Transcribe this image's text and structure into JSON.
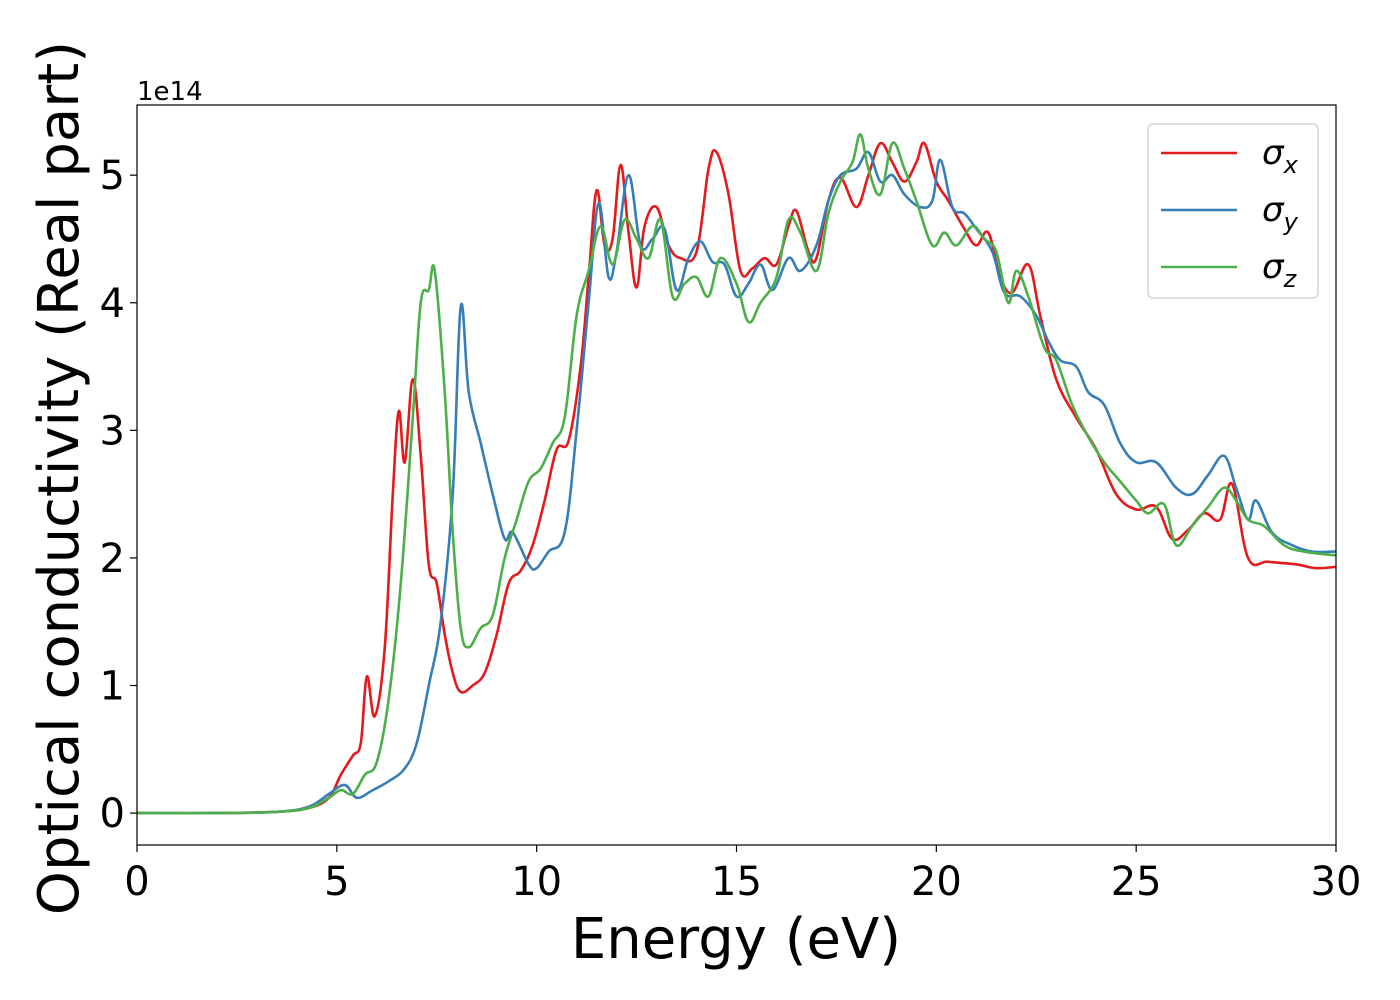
{
  "chart_data": {
    "type": "line",
    "xlabel": "Energy (eV)",
    "ylabel": "Optical conductivity (Real part)",
    "y_offset_label": "1e14",
    "xlim": [
      0,
      30
    ],
    "ylim": [
      -0.25,
      5.55
    ],
    "x_ticks": [
      0,
      5,
      10,
      15,
      20,
      25,
      30
    ],
    "y_ticks": [
      0,
      1,
      2,
      3,
      4,
      5
    ],
    "grid": false,
    "legend_position": "top-right",
    "series": [
      {
        "name": "σ",
        "subscript": "x",
        "color": "#e41a1c",
        "points": [
          [
            0,
            0
          ],
          [
            2,
            0
          ],
          [
            3.5,
            0.01
          ],
          [
            4.3,
            0.04
          ],
          [
            4.8,
            0.12
          ],
          [
            5.1,
            0.3
          ],
          [
            5.4,
            0.45
          ],
          [
            5.6,
            0.55
          ],
          [
            5.75,
            1.07
          ],
          [
            5.95,
            0.76
          ],
          [
            6.2,
            1.3
          ],
          [
            6.4,
            2.5
          ],
          [
            6.55,
            3.15
          ],
          [
            6.7,
            2.75
          ],
          [
            6.9,
            3.4
          ],
          [
            7.1,
            2.8
          ],
          [
            7.3,
            1.95
          ],
          [
            7.5,
            1.8
          ],
          [
            7.7,
            1.4
          ],
          [
            7.9,
            1.1
          ],
          [
            8.1,
            0.95
          ],
          [
            8.4,
            1.0
          ],
          [
            8.7,
            1.1
          ],
          [
            9.0,
            1.4
          ],
          [
            9.3,
            1.8
          ],
          [
            9.6,
            1.9
          ],
          [
            9.9,
            2.1
          ],
          [
            10.2,
            2.45
          ],
          [
            10.5,
            2.85
          ],
          [
            10.8,
            2.92
          ],
          [
            11.1,
            3.5
          ],
          [
            11.3,
            4.2
          ],
          [
            11.5,
            4.88
          ],
          [
            11.7,
            4.45
          ],
          [
            11.9,
            4.5
          ],
          [
            12.1,
            5.08
          ],
          [
            12.3,
            4.55
          ],
          [
            12.5,
            4.12
          ],
          [
            12.7,
            4.6
          ],
          [
            13.0,
            4.75
          ],
          [
            13.3,
            4.45
          ],
          [
            13.6,
            4.35
          ],
          [
            14.0,
            4.4
          ],
          [
            14.3,
            5.05
          ],
          [
            14.5,
            5.18
          ],
          [
            14.8,
            4.85
          ],
          [
            15.1,
            4.25
          ],
          [
            15.4,
            4.27
          ],
          [
            15.7,
            4.35
          ],
          [
            16.0,
            4.3
          ],
          [
            16.3,
            4.6
          ],
          [
            16.5,
            4.72
          ],
          [
            16.8,
            4.4
          ],
          [
            17.0,
            4.35
          ],
          [
            17.3,
            4.8
          ],
          [
            17.6,
            4.98
          ],
          [
            18.0,
            4.75
          ],
          [
            18.3,
            5.0
          ],
          [
            18.6,
            5.25
          ],
          [
            18.9,
            5.1
          ],
          [
            19.2,
            4.95
          ],
          [
            19.5,
            5.1
          ],
          [
            19.7,
            5.25
          ],
          [
            20.0,
            4.95
          ],
          [
            20.3,
            4.8
          ],
          [
            20.7,
            4.58
          ],
          [
            21.0,
            4.45
          ],
          [
            21.3,
            4.55
          ],
          [
            21.6,
            4.2
          ],
          [
            21.9,
            4.08
          ],
          [
            22.3,
            4.3
          ],
          [
            22.6,
            3.9
          ],
          [
            23.0,
            3.4
          ],
          [
            23.5,
            3.1
          ],
          [
            24.0,
            2.85
          ],
          [
            24.5,
            2.5
          ],
          [
            25.0,
            2.38
          ],
          [
            25.5,
            2.4
          ],
          [
            25.9,
            2.15
          ],
          [
            26.3,
            2.22
          ],
          [
            26.7,
            2.35
          ],
          [
            27.1,
            2.3
          ],
          [
            27.4,
            2.58
          ],
          [
            27.8,
            2.0
          ],
          [
            28.3,
            1.97
          ],
          [
            29.0,
            1.95
          ],
          [
            29.5,
            1.92
          ],
          [
            30,
            1.93
          ]
        ]
      },
      {
        "name": "σ",
        "subscript": "y",
        "color": "#377eb8",
        "points": [
          [
            0,
            0
          ],
          [
            2,
            0
          ],
          [
            3.5,
            0.01
          ],
          [
            4.3,
            0.05
          ],
          [
            4.8,
            0.15
          ],
          [
            5.2,
            0.22
          ],
          [
            5.5,
            0.12
          ],
          [
            5.9,
            0.18
          ],
          [
            6.3,
            0.25
          ],
          [
            6.7,
            0.35
          ],
          [
            7.0,
            0.55
          ],
          [
            7.3,
            1.0
          ],
          [
            7.6,
            1.5
          ],
          [
            7.9,
            2.5
          ],
          [
            8.1,
            3.97
          ],
          [
            8.3,
            3.3
          ],
          [
            8.6,
            2.9
          ],
          [
            8.9,
            2.5
          ],
          [
            9.2,
            2.15
          ],
          [
            9.4,
            2.2
          ],
          [
            9.8,
            1.95
          ],
          [
            10.0,
            1.92
          ],
          [
            10.3,
            2.05
          ],
          [
            10.7,
            2.2
          ],
          [
            11.0,
            3.0
          ],
          [
            11.3,
            4.0
          ],
          [
            11.55,
            4.78
          ],
          [
            11.8,
            4.2
          ],
          [
            12.0,
            4.4
          ],
          [
            12.3,
            5.0
          ],
          [
            12.6,
            4.45
          ],
          [
            12.9,
            4.5
          ],
          [
            13.2,
            4.58
          ],
          [
            13.5,
            4.1
          ],
          [
            13.8,
            4.35
          ],
          [
            14.1,
            4.48
          ],
          [
            14.4,
            4.32
          ],
          [
            14.7,
            4.3
          ],
          [
            15.0,
            4.05
          ],
          [
            15.3,
            4.15
          ],
          [
            15.6,
            4.3
          ],
          [
            15.9,
            4.1
          ],
          [
            16.3,
            4.35
          ],
          [
            16.6,
            4.25
          ],
          [
            17.0,
            4.45
          ],
          [
            17.3,
            4.8
          ],
          [
            17.6,
            5.0
          ],
          [
            18.0,
            5.05
          ],
          [
            18.3,
            5.18
          ],
          [
            18.6,
            4.95
          ],
          [
            18.9,
            5.0
          ],
          [
            19.2,
            4.85
          ],
          [
            19.6,
            4.75
          ],
          [
            19.9,
            4.8
          ],
          [
            20.1,
            5.12
          ],
          [
            20.4,
            4.75
          ],
          [
            20.7,
            4.7
          ],
          [
            21.0,
            4.58
          ],
          [
            21.4,
            4.4
          ],
          [
            21.7,
            4.08
          ],
          [
            22.1,
            4.05
          ],
          [
            22.5,
            3.9
          ],
          [
            22.8,
            3.7
          ],
          [
            23.1,
            3.55
          ],
          [
            23.5,
            3.5
          ],
          [
            23.8,
            3.3
          ],
          [
            24.2,
            3.2
          ],
          [
            24.6,
            2.9
          ],
          [
            25.0,
            2.75
          ],
          [
            25.5,
            2.75
          ],
          [
            26.0,
            2.55
          ],
          [
            26.4,
            2.5
          ],
          [
            26.8,
            2.65
          ],
          [
            27.2,
            2.8
          ],
          [
            27.5,
            2.55
          ],
          [
            27.8,
            2.3
          ],
          [
            28.0,
            2.45
          ],
          [
            28.4,
            2.2
          ],
          [
            28.9,
            2.1
          ],
          [
            29.4,
            2.05
          ],
          [
            30,
            2.05
          ]
        ]
      },
      {
        "name": "σ",
        "subscript": "z",
        "color": "#4daf4a",
        "points": [
          [
            0,
            0
          ],
          [
            2,
            0
          ],
          [
            3.5,
            0.01
          ],
          [
            4.3,
            0.04
          ],
          [
            4.8,
            0.12
          ],
          [
            5.1,
            0.18
          ],
          [
            5.4,
            0.15
          ],
          [
            5.7,
            0.3
          ],
          [
            6.0,
            0.4
          ],
          [
            6.3,
            0.9
          ],
          [
            6.6,
            1.8
          ],
          [
            6.9,
            3.1
          ],
          [
            7.1,
            4.0
          ],
          [
            7.3,
            4.1
          ],
          [
            7.45,
            4.25
          ],
          [
            7.7,
            3.3
          ],
          [
            7.9,
            2.2
          ],
          [
            8.1,
            1.45
          ],
          [
            8.3,
            1.3
          ],
          [
            8.6,
            1.45
          ],
          [
            8.9,
            1.55
          ],
          [
            9.2,
            2.0
          ],
          [
            9.5,
            2.3
          ],
          [
            9.8,
            2.6
          ],
          [
            10.1,
            2.7
          ],
          [
            10.4,
            2.9
          ],
          [
            10.7,
            3.1
          ],
          [
            11.0,
            3.9
          ],
          [
            11.3,
            4.25
          ],
          [
            11.6,
            4.6
          ],
          [
            11.9,
            4.3
          ],
          [
            12.2,
            4.65
          ],
          [
            12.5,
            4.5
          ],
          [
            12.8,
            4.35
          ],
          [
            13.1,
            4.65
          ],
          [
            13.4,
            4.05
          ],
          [
            13.7,
            4.15
          ],
          [
            14.0,
            4.2
          ],
          [
            14.3,
            4.05
          ],
          [
            14.6,
            4.35
          ],
          [
            15.0,
            4.15
          ],
          [
            15.3,
            3.85
          ],
          [
            15.6,
            4.0
          ],
          [
            16.0,
            4.2
          ],
          [
            16.3,
            4.65
          ],
          [
            16.6,
            4.55
          ],
          [
            17.0,
            4.25
          ],
          [
            17.3,
            4.7
          ],
          [
            17.6,
            4.95
          ],
          [
            17.9,
            5.1
          ],
          [
            18.1,
            5.32
          ],
          [
            18.3,
            5.05
          ],
          [
            18.6,
            4.85
          ],
          [
            18.9,
            5.25
          ],
          [
            19.2,
            5.05
          ],
          [
            19.5,
            4.8
          ],
          [
            19.9,
            4.45
          ],
          [
            20.2,
            4.55
          ],
          [
            20.5,
            4.45
          ],
          [
            20.9,
            4.6
          ],
          [
            21.2,
            4.5
          ],
          [
            21.5,
            4.4
          ],
          [
            21.8,
            4.0
          ],
          [
            22.0,
            4.25
          ],
          [
            22.3,
            4.05
          ],
          [
            22.7,
            3.65
          ],
          [
            23.0,
            3.55
          ],
          [
            23.4,
            3.2
          ],
          [
            23.8,
            2.95
          ],
          [
            24.2,
            2.75
          ],
          [
            24.6,
            2.6
          ],
          [
            25.0,
            2.45
          ],
          [
            25.3,
            2.35
          ],
          [
            25.7,
            2.42
          ],
          [
            26.0,
            2.1
          ],
          [
            26.4,
            2.25
          ],
          [
            26.8,
            2.4
          ],
          [
            27.2,
            2.55
          ],
          [
            27.5,
            2.45
          ],
          [
            27.8,
            2.3
          ],
          [
            28.2,
            2.25
          ],
          [
            28.7,
            2.1
          ],
          [
            29.2,
            2.05
          ],
          [
            30,
            2.02
          ]
        ]
      }
    ]
  }
}
